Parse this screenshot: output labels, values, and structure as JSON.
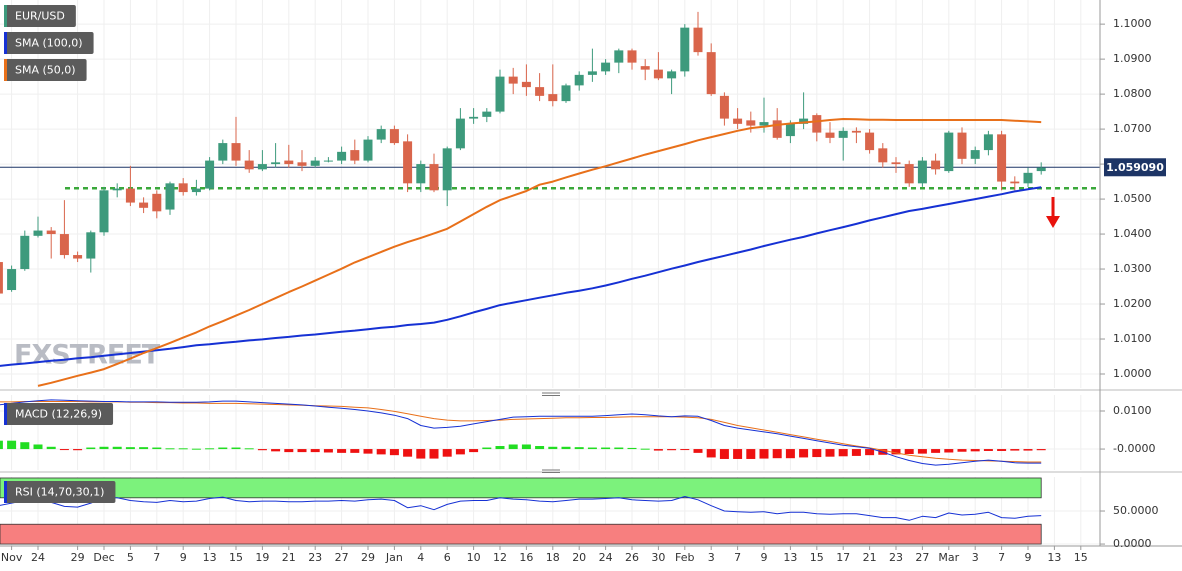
{
  "chart_data": {
    "type": "candlestick",
    "title": "EUR/USD",
    "watermark": "FXSTREET",
    "categories": [
      null,
      "Nov",
      null,
      "24",
      null,
      null,
      "29",
      null,
      "Dec",
      null,
      "5",
      null,
      "7",
      null,
      "9",
      null,
      "13",
      null,
      "15",
      null,
      "19",
      null,
      "21",
      null,
      "23",
      null,
      "27",
      null,
      "29",
      null,
      "Jan",
      null,
      "4",
      null,
      "6",
      null,
      "10",
      null,
      "12",
      null,
      "16",
      null,
      "18",
      null,
      "20",
      null,
      "24",
      null,
      "26",
      null,
      "30",
      null,
      "Feb",
      null,
      "3",
      null,
      "7",
      null,
      "9",
      null,
      "13",
      null,
      "15",
      null,
      "17",
      null,
      "21",
      null,
      "23",
      null,
      "27",
      null,
      "Mar",
      null,
      "3",
      null,
      "7",
      null,
      "9",
      null,
      "13",
      null,
      "15"
    ],
    "open": [
      1.032,
      1.024,
      1.03,
      1.0395,
      1.041,
      1.04,
      1.034,
      1.033,
      1.0405,
      1.0525,
      1.053,
      1.049,
      1.0515,
      1.047,
      1.0545,
      1.052,
      1.053,
      1.061,
      1.066,
      1.061,
      1.0585,
      1.06,
      1.061,
      1.0605,
      1.0595,
      1.061,
      1.061,
      1.064,
      1.061,
      1.067,
      1.07,
      1.0665,
      1.0545,
      1.06,
      1.0525,
      1.0645,
      1.073,
      1.0735,
      1.075,
      1.085,
      1.0835,
      1.082,
      1.08,
      1.078,
      1.0825,
      1.0855,
      1.0865,
      1.089,
      1.0925,
      1.088,
      1.087,
      1.0845,
      1.0865,
      1.099,
      1.092,
      1.0795,
      1.073,
      1.0725,
      1.071,
      1.0725,
      1.068,
      1.0715,
      1.074,
      1.069,
      1.0675,
      1.0695,
      1.069,
      1.0645,
      1.0605,
      1.06,
      1.0545,
      1.061,
      1.058,
      1.069,
      1.0615,
      1.064,
      1.0685,
      1.055,
      1.0545,
      1.058,
      null,
      null,
      null
    ],
    "high": [
      1.033,
      1.031,
      1.041,
      1.045,
      1.042,
      1.0497,
      1.035,
      1.041,
      1.0535,
      1.0545,
      1.0595,
      1.0505,
      1.0525,
      1.055,
      1.056,
      1.0555,
      1.062,
      1.067,
      1.0735,
      1.064,
      1.064,
      1.066,
      1.0655,
      1.064,
      1.062,
      1.062,
      1.065,
      1.067,
      1.068,
      1.071,
      1.071,
      1.0685,
      1.061,
      1.063,
      1.065,
      1.076,
      1.076,
      1.076,
      1.087,
      1.0875,
      1.0885,
      1.086,
      1.0885,
      1.083,
      1.0865,
      1.093,
      1.09,
      1.093,
      1.093,
      1.09,
      1.092,
      1.087,
      1.1,
      1.1035,
      1.0945,
      1.0805,
      1.076,
      1.075,
      1.079,
      1.076,
      1.0725,
      1.0805,
      1.0745,
      1.072,
      1.0705,
      1.0705,
      1.07,
      1.066,
      1.062,
      1.061,
      1.062,
      1.063,
      1.0695,
      1.0705,
      1.065,
      1.0695,
      1.0695,
      1.0565,
      1.059,
      1.0605,
      null,
      null,
      null
    ],
    "low": [
      1.0225,
      1.0235,
      1.0295,
      1.039,
      1.033,
      1.033,
      1.032,
      1.029,
      1.0395,
      1.0505,
      1.048,
      1.046,
      1.0445,
      1.0455,
      1.051,
      1.051,
      1.0525,
      1.06,
      1.0595,
      1.0575,
      1.058,
      1.059,
      1.059,
      1.058,
      1.059,
      1.0605,
      1.06,
      1.06,
      1.0605,
      1.066,
      1.0655,
      1.052,
      1.052,
      1.052,
      1.048,
      1.064,
      1.0715,
      1.072,
      1.0745,
      1.08,
      1.0795,
      1.078,
      1.0765,
      1.0775,
      1.081,
      1.0835,
      1.0855,
      1.086,
      1.087,
      1.084,
      1.084,
      1.08,
      1.085,
      1.091,
      1.0795,
      1.071,
      1.07,
      1.069,
      1.069,
      1.067,
      1.066,
      1.07,
      1.0665,
      1.066,
      1.061,
      1.066,
      1.063,
      1.059,
      1.0575,
      1.0535,
      1.0535,
      1.057,
      1.0575,
      1.06,
      1.06,
      1.0625,
      1.0525,
      1.0525,
      1.0535,
      1.057,
      null,
      null,
      null
    ],
    "close": [
      1.023,
      1.03,
      1.0395,
      1.041,
      1.04,
      1.034,
      1.033,
      1.0405,
      1.0525,
      1.053,
      1.049,
      1.0475,
      1.0465,
      1.0545,
      1.052,
      1.053,
      1.061,
      1.066,
      1.061,
      1.0585,
      1.06,
      1.0605,
      1.06,
      1.0595,
      1.061,
      1.061,
      1.0635,
      1.061,
      1.067,
      1.07,
      1.066,
      1.0545,
      1.06,
      1.0525,
      1.0645,
      1.073,
      1.0735,
      1.075,
      1.085,
      1.083,
      1.082,
      1.0795,
      1.078,
      1.0825,
      1.0855,
      1.0865,
      1.089,
      1.0925,
      1.089,
      1.087,
      1.0845,
      1.0865,
      1.099,
      1.092,
      1.08,
      1.073,
      1.0715,
      1.071,
      1.072,
      1.0675,
      1.0715,
      1.073,
      1.069,
      1.0675,
      1.0695,
      1.069,
      1.064,
      1.0605,
      1.06,
      1.0545,
      1.061,
      1.0585,
      1.069,
      1.0615,
      1.064,
      1.0685,
      1.055,
      1.0545,
      1.0575,
      1.059,
      null,
      null,
      null
    ],
    "up_color": "#3d9a7c",
    "down_color": "#d9654b",
    "title_color": "#3d9a7c",
    "ylim": [
      0.996,
      1.1069
    ],
    "yticks": [
      {
        "value": 1.0,
        "label": "1.0000"
      },
      {
        "value": 1.01,
        "label": "1.0100"
      },
      {
        "value": 1.02,
        "label": "1.0200"
      },
      {
        "value": 1.03,
        "label": "1.0300"
      },
      {
        "value": 1.04,
        "label": "1.0400"
      },
      {
        "value": 1.05,
        "label": "1.0500"
      },
      {
        "value": 1.06,
        "label": "1.0600"
      },
      {
        "value": 1.07,
        "label": "1.0700"
      },
      {
        "value": 1.08,
        "label": "1.0800"
      },
      {
        "value": 1.09,
        "label": "1.0900"
      },
      {
        "value": 1.1,
        "label": "1.1000"
      }
    ],
    "grid": true,
    "price_line": {
      "value": 1.05909,
      "label": "1.059090",
      "color": "#1d3566"
    },
    "support_level": {
      "value": 1.0531,
      "color": "#3aa83a"
    },
    "series": [
      {
        "name": "SMA (100,0)",
        "color": "#1631d4",
        "values": [
          1.0023,
          1.0027,
          1.003,
          1.0034,
          1.0038,
          1.0041,
          1.0045,
          1.0048,
          1.0052,
          1.0056,
          1.006,
          1.0064,
          1.0068,
          1.0072,
          1.0077,
          1.0082,
          1.0085,
          1.0089,
          1.0092,
          1.0096,
          1.0099,
          1.0103,
          1.0106,
          1.011,
          1.0113,
          1.0117,
          1.0121,
          1.0124,
          1.0128,
          1.0132,
          1.0135,
          1.014,
          1.0143,
          1.0147,
          1.0155,
          1.0165,
          1.0176,
          1.0186,
          1.0197,
          1.0204,
          1.0211,
          1.0218,
          1.0225,
          1.0232,
          1.0238,
          1.0245,
          1.0253,
          1.0262,
          1.0272,
          1.0281,
          1.0291,
          1.0301,
          1.031,
          1.032,
          1.0329,
          1.0338,
          1.0347,
          1.0356,
          1.0366,
          1.0375,
          1.0384,
          1.0392,
          1.0402,
          1.0411,
          1.042,
          1.0429,
          1.0439,
          1.0448,
          1.0457,
          1.0466,
          1.0472,
          1.0479,
          1.0486,
          1.0493,
          1.05,
          1.0507,
          1.0514,
          1.0522,
          1.0528,
          1.0534,
          null,
          null,
          null
        ]
      },
      {
        "name": "SMA (50,0)",
        "color": "#e8701a",
        "values": [
          null,
          null,
          null,
          0.9966,
          0.9975,
          0.9985,
          0.9995,
          1.0004,
          1.0014,
          1.0029,
          1.0044,
          1.006,
          1.0074,
          1.0089,
          1.0104,
          1.0119,
          1.0136,
          1.0151,
          1.0167,
          1.0183,
          1.02,
          1.0217,
          1.0234,
          1.025,
          1.0267,
          1.0284,
          1.0301,
          1.0319,
          1.0334,
          1.0349,
          1.0364,
          1.0377,
          1.0389,
          1.0402,
          1.0415,
          1.0436,
          1.0457,
          1.0478,
          1.0497,
          1.051,
          1.0523,
          1.0541,
          1.055,
          1.0562,
          1.0573,
          1.0584,
          1.0594,
          1.0605,
          1.0616,
          1.0627,
          1.0637,
          1.0647,
          1.0657,
          1.0668,
          1.0677,
          1.0686,
          1.0695,
          1.0703,
          1.0707,
          1.0712,
          1.0716,
          1.0719,
          1.0722,
          1.0726,
          1.0729,
          1.0728,
          1.0727,
          1.0727,
          1.0726,
          1.0726,
          1.0726,
          1.0726,
          1.0726,
          1.0726,
          1.0726,
          1.0726,
          1.0726,
          1.0724,
          1.0722,
          1.072,
          null,
          null,
          null
        ]
      }
    ],
    "macd": {
      "name": "MACD (12,26,9)",
      "ylim": [
        -0.0055,
        0.0142
      ],
      "yticks": [
        {
          "value": 0.01,
          "label": "0.0100"
        },
        {
          "value": 0,
          "label": "-0.0000"
        }
      ],
      "macd_line": {
        "color": "#1631d4",
        "values": [
          0.0116,
          0.012,
          0.0124,
          0.0127,
          0.0129,
          0.0128,
          0.0127,
          0.0126,
          0.0125,
          0.0125,
          0.0124,
          0.0124,
          0.0124,
          0.0123,
          0.0123,
          0.0123,
          0.0124,
          0.0126,
          0.0126,
          0.0124,
          0.0122,
          0.012,
          0.0118,
          0.0116,
          0.0113,
          0.011,
          0.0107,
          0.0104,
          0.01,
          0.0095,
          0.0089,
          0.008,
          0.0062,
          0.0055,
          0.0057,
          0.006,
          0.0066,
          0.0072,
          0.0078,
          0.0084,
          0.0085,
          0.0086,
          0.0086,
          0.0086,
          0.0086,
          0.0086,
          0.0088,
          0.009,
          0.0092,
          0.009,
          0.0087,
          0.0085,
          0.0087,
          0.0086,
          0.0075,
          0.0062,
          0.0055,
          0.005,
          0.0045,
          0.004,
          0.0034,
          0.0028,
          0.0022,
          0.0016,
          0.001,
          0.0006,
          0.0002,
          -0.0008,
          -0.002,
          -0.003,
          -0.0038,
          -0.0042,
          -0.004,
          -0.0036,
          -0.0032,
          -0.0029,
          -0.0032,
          -0.0036,
          -0.0037,
          -0.0037,
          null,
          null,
          null
        ]
      },
      "signal_line": {
        "color": "#e8701a",
        "values": [
          0.0124,
          0.0124,
          0.0125,
          0.0125,
          0.0125,
          0.0125,
          0.0125,
          0.0124,
          0.0124,
          0.0124,
          0.0123,
          0.0123,
          0.0122,
          0.0122,
          0.0121,
          0.0121,
          0.012,
          0.012,
          0.012,
          0.0119,
          0.0118,
          0.0117,
          0.0116,
          0.0115,
          0.0114,
          0.0113,
          0.0112,
          0.011,
          0.0108,
          0.0104,
          0.0099,
          0.0093,
          0.0086,
          0.008,
          0.0076,
          0.0074,
          0.0074,
          0.0075,
          0.0076,
          0.0078,
          0.0079,
          0.008,
          0.0081,
          0.0082,
          0.0082,
          0.0083,
          0.0083,
          0.0084,
          0.0085,
          0.0085,
          0.0085,
          0.0085,
          0.0084,
          0.0082,
          0.0078,
          0.007,
          0.0062,
          0.0056,
          0.005,
          0.0044,
          0.0038,
          0.0032,
          0.0026,
          0.002,
          0.0014,
          0.0008,
          0.0003,
          -0.0003,
          -0.001,
          -0.0016,
          -0.002,
          -0.0024,
          -0.0027,
          -0.0029,
          -0.003,
          -0.0031,
          -0.0032,
          -0.0033,
          -0.0034,
          -0.0034,
          null,
          null,
          null
        ]
      },
      "histogram": {
        "up_color": "#22dd22",
        "down_color": "#ee1111",
        "values": [
          0.0022,
          0.0022,
          0.0018,
          0.0012,
          0.0006,
          -0.0002,
          -0.0003,
          0.0004,
          0.0006,
          0.0006,
          0.0005,
          0.0005,
          0.0004,
          0.0002,
          0.0002,
          0.0001,
          0.0002,
          0.0004,
          0.0004,
          0.0002,
          -0.0003,
          -0.0006,
          -0.0008,
          -0.0008,
          -0.0008,
          -0.0009,
          -0.001,
          -0.001,
          -0.0012,
          -0.0014,
          -0.0016,
          -0.002,
          -0.0025,
          -0.0025,
          -0.002,
          -0.0014,
          -0.0008,
          0.0004,
          0.0008,
          0.0012,
          0.0012,
          0.0008,
          0.0006,
          0.0006,
          0.0005,
          0.0004,
          0.0004,
          0.0004,
          0.0003,
          0.0001,
          -0.0004,
          -0.0003,
          -0.0002,
          -0.001,
          -0.0022,
          -0.0026,
          -0.0026,
          -0.0026,
          -0.0025,
          -0.0024,
          -0.0024,
          -0.0022,
          -0.0021,
          -0.002,
          -0.0019,
          -0.0018,
          -0.0016,
          -0.0015,
          -0.0014,
          -0.0013,
          -0.0012,
          -0.001,
          -0.0009,
          -0.0007,
          -0.0006,
          -0.0005,
          -0.0005,
          -0.0004,
          -0.0004,
          -0.0003,
          null,
          null,
          null
        ]
      }
    },
    "rsi": {
      "name": "RSI (14,70,30,1)",
      "ylim": [
        -9,
        101.5
      ],
      "yticks": [
        {
          "value": 50,
          "label": "50.0000"
        },
        {
          "value": 0,
          "label": "0.0000"
        }
      ],
      "overbought_band": [
        70,
        100
      ],
      "oversold_band": [
        0,
        30
      ],
      "overbought_color": "#7cf27c",
      "oversold_color": "#f77f7f",
      "color": "#1631d4",
      "values": [
        58,
        62,
        66,
        66,
        63,
        57,
        56,
        62,
        70,
        70,
        66,
        64,
        63,
        66,
        64,
        65,
        69,
        71,
        66,
        64,
        65,
        65,
        64,
        64,
        65,
        65,
        66,
        65,
        67,
        68,
        66,
        55,
        58,
        52,
        60,
        65,
        66,
        66,
        70,
        68,
        67,
        65,
        64,
        66,
        68,
        68,
        69,
        70,
        67,
        66,
        65,
        66,
        72,
        67,
        58,
        50,
        49,
        48,
        49,
        46,
        48,
        48,
        46,
        45,
        46,
        46,
        43,
        40,
        40,
        36,
        42,
        40,
        47,
        44,
        45,
        48,
        40,
        39,
        42,
        43,
        null,
        null,
        null
      ]
    }
  }
}
